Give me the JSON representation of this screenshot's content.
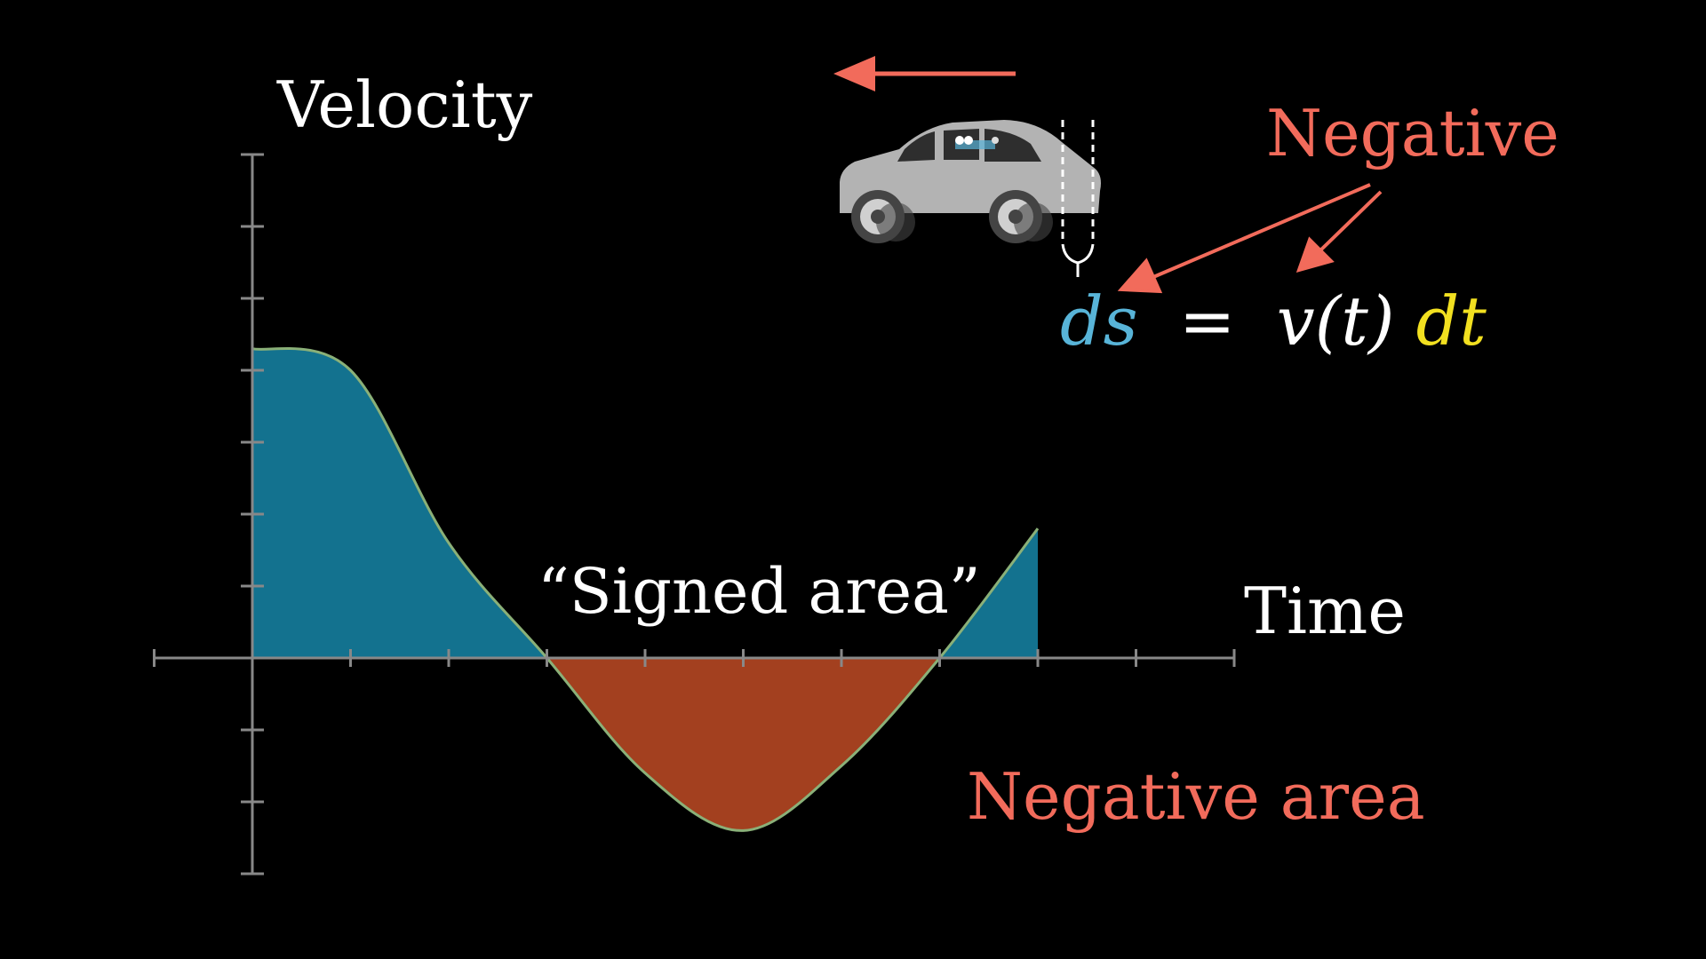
{
  "labels": {
    "y_axis": "Velocity",
    "x_axis": "Time",
    "signed_area": "“Signed area”",
    "negative_area": "Negative area",
    "negative": "Negative"
  },
  "equation": {
    "ds": "ds",
    "equals": "=",
    "vt": "v(t)",
    "dt": "dt"
  },
  "colors": {
    "background": "#000000",
    "axis": "#888888",
    "text": "#ffffff",
    "positive_fill": "#13728f",
    "negative_fill": "#a3401f",
    "curve": "#8ab078",
    "accent_red": "#f26b5b",
    "ds_color": "#58b4d8",
    "dt_color": "#f2e020",
    "car_body": "#b3b3b3"
  },
  "chart_data": {
    "type": "area",
    "function": "velocity vs time (sinusoid-like)",
    "x": [
      0,
      1,
      2,
      3,
      4,
      5,
      6,
      7,
      8
    ],
    "y": [
      4.3,
      4.0,
      1.6,
      0.0,
      -1.6,
      -2.4,
      -1.5,
      0.0,
      1.8
    ],
    "zero_crossings": [
      3,
      7
    ],
    "max": {
      "x": 0.5,
      "y": 4.6
    },
    "min": {
      "x": 5,
      "y": -2.4
    },
    "xlim": [
      -1,
      10
    ],
    "ylim": [
      -3,
      7
    ],
    "x_ticks": [
      -1,
      0,
      1,
      2,
      3,
      4,
      5,
      6,
      7,
      8,
      9,
      10
    ],
    "y_ticks": [
      -3,
      -2,
      -1,
      0,
      1,
      2,
      3,
      4,
      5,
      6,
      7
    ],
    "positive_region_color": "blue",
    "negative_region_color": "red",
    "grid": false,
    "legend": "none"
  },
  "icons": [
    "car-icon",
    "left-arrow-icon",
    "pointer-arrow-icon",
    "brace-icon"
  ]
}
